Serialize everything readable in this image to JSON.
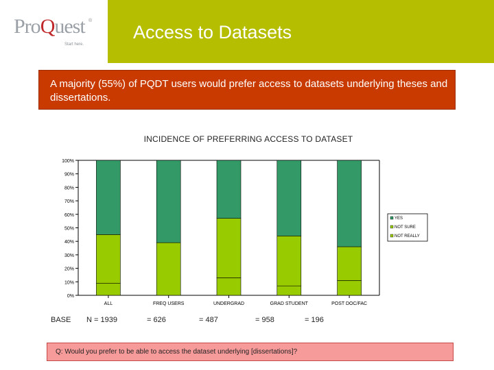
{
  "logo": {
    "brand_pre": "Pro",
    "brand_q": "Q",
    "brand_post": "uest",
    "tagline": "Start here.",
    "reg": "®"
  },
  "header": {
    "title": "Access to Datasets",
    "bg_color": "#b5be00"
  },
  "callout": {
    "text": "A majority (55%) of PQDT users would prefer access to datasets underlying theses and dissertations.",
    "bg_color": "#c83a00"
  },
  "chart_data": {
    "type": "bar",
    "stacked": true,
    "title": "INCIDENCE OF PREFERRING ACCESS TO DATASET",
    "categories": [
      "ALL",
      "FREQ USERS",
      "UNDERGRAD",
      "GRAD STUDENT",
      "POST DOC/FAC"
    ],
    "series": [
      {
        "name": "NOT REALLY",
        "values": [
          9,
          0,
          13,
          7,
          11
        ],
        "color": "#99cc00"
      },
      {
        "name": "NOT SURE",
        "values": [
          36,
          39,
          44,
          37,
          25
        ],
        "color": "#99cc00"
      },
      {
        "name": "YES",
        "values": [
          55,
          61,
          43,
          56,
          64
        ],
        "color": "#339966"
      }
    ],
    "legend_order": [
      "YES",
      "NOT SURE",
      "NOT REALLY"
    ],
    "yticks": [
      "0%",
      "10%",
      "20%",
      "30%",
      "40%",
      "50%",
      "60%",
      "70%",
      "80%",
      "90%",
      "100%"
    ],
    "ylim": [
      0,
      100
    ],
    "grid": false,
    "legend_position": "right"
  },
  "base": {
    "label": "BASE",
    "values": [
      "N = 1939",
      "= 626",
      "= 487",
      "= 958",
      "= 196"
    ]
  },
  "question": {
    "text": "Q: Would you prefer to be able to access the dataset underlying [dissertations]?",
    "bg_color": "#f79a9a"
  }
}
